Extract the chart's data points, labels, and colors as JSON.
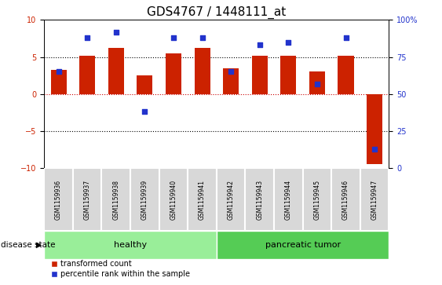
{
  "title": "GDS4767 / 1448111_at",
  "samples": [
    "GSM1159936",
    "GSM1159937",
    "GSM1159938",
    "GSM1159939",
    "GSM1159940",
    "GSM1159941",
    "GSM1159942",
    "GSM1159943",
    "GSM1159944",
    "GSM1159945",
    "GSM1159946",
    "GSM1159947"
  ],
  "bar_values": [
    3.3,
    5.2,
    6.2,
    2.5,
    5.5,
    6.2,
    3.5,
    5.2,
    5.2,
    3.0,
    5.2,
    -9.5
  ],
  "percentile_right": [
    65,
    88,
    92,
    38,
    88,
    88,
    65,
    83,
    85,
    57,
    88,
    13
  ],
  "bar_color": "#cc2200",
  "dot_color": "#2233cc",
  "ylim_left": [
    -10,
    10
  ],
  "ylim_right": [
    0,
    100
  ],
  "yticks_left": [
    -10,
    -5,
    0,
    5,
    10
  ],
  "yticks_right": [
    0,
    25,
    50,
    75,
    100
  ],
  "hlines": [
    5.0,
    0.0,
    -5.0
  ],
  "hline_colors": [
    "black",
    "#cc0000",
    "black"
  ],
  "hline_styles": [
    "dotted",
    "dotted",
    "dotted"
  ],
  "groups": [
    {
      "label": "healthy",
      "start": 0,
      "end": 5,
      "color": "#99ee99"
    },
    {
      "label": "pancreatic tumor",
      "start": 6,
      "end": 11,
      "color": "#55cc55"
    }
  ],
  "disease_state_label": "disease state",
  "legend_bar_label": "transformed count",
  "legend_dot_label": "percentile rank within the sample",
  "background_color": "#ffffff",
  "tick_fontsize": 7,
  "title_fontsize": 11,
  "group_fontsize": 8,
  "legend_fontsize": 7
}
